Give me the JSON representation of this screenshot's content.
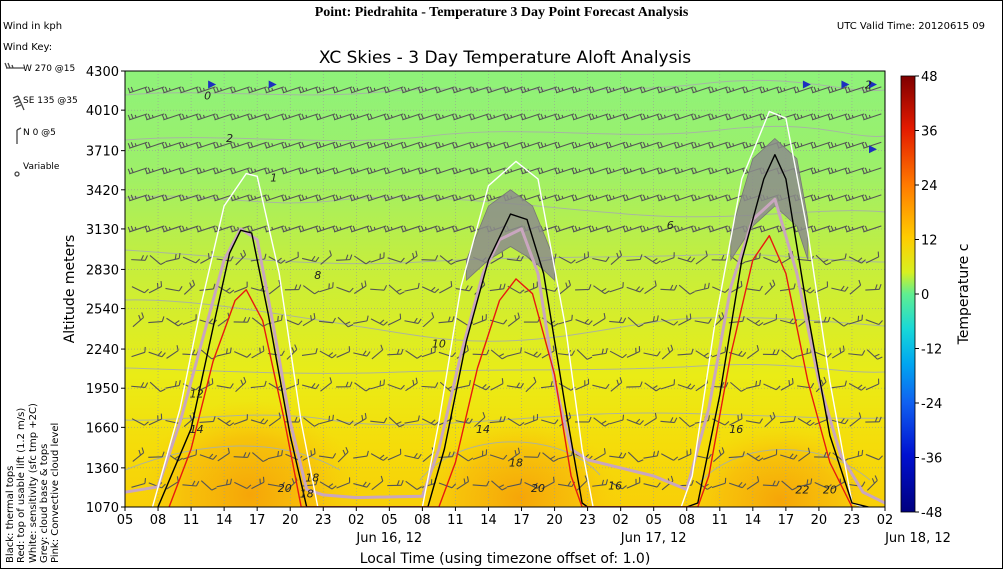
{
  "header": {
    "title": "Point: Piedrahita - Temperature 3 Day Point Forecast Analysis",
    "utc": "UTC Valid Time: 20120615 09"
  },
  "wind_units": "Wind in kph",
  "wind_key": {
    "label": "Wind Key:",
    "items": [
      "W 270 @15",
      "SE 135 @35",
      "N 0 @5",
      "Variable"
    ]
  },
  "legend_notes": [
    "Black: thermal tops",
    "Red: top of usable lift (1.2 m/s)",
    "White: sensitivity (sfc tmp +2C)",
    "Grey: cloud base & tops",
    "Pink: Convective cloud level"
  ],
  "colors": {
    "thermal_tops": "#000000",
    "usable_lift": "#e8190f",
    "sensitivity": "#ffffff",
    "cloud_band": "#8c8c8c",
    "convective_cloud": "#c9a6bf"
  },
  "chart_data": {
    "type": "heatmap",
    "title": "XC Skies - 3 Day Temperature Aloft Analysis",
    "xlabel": "Local Time (using timezone offset of: 1.0)",
    "ylabel": "Altitude meters",
    "x_hours": [
      5,
      8,
      11,
      14,
      17,
      20,
      23,
      26,
      29,
      32,
      35,
      38,
      41,
      44,
      47,
      50,
      53,
      56,
      59,
      62,
      65,
      68,
      71,
      74
    ],
    "x_tick_labels": [
      "05",
      "08",
      "11",
      "14",
      "17",
      "20",
      "23",
      "02",
      "05",
      "08",
      "11",
      "14",
      "17",
      "20",
      "23",
      "02",
      "05",
      "08",
      "11",
      "14",
      "17",
      "20",
      "23",
      "02"
    ],
    "date_labels": [
      {
        "hour": 26,
        "label": "Jun 16, 12"
      },
      {
        "hour": 50,
        "label": "Jun 17, 12"
      },
      {
        "hour": 74,
        "label": "Jun 18, 12"
      }
    ],
    "yticks": [
      1070,
      1360,
      1660,
      1950,
      2240,
      2540,
      2830,
      3130,
      3420,
      3710,
      4010,
      4300
    ],
    "ylim": [
      1070,
      4300
    ],
    "xlim": [
      5,
      74
    ],
    "colorbar": {
      "label": "Temperature c",
      "ticks": [
        48,
        36,
        24,
        12,
        0,
        -12,
        -24,
        -36,
        -48
      ],
      "range": [
        -48,
        48
      ]
    },
    "contour_labels": [
      {
        "text": "0",
        "x": 12.5,
        "y": 4090
      },
      {
        "text": "2",
        "x": 14.5,
        "y": 3775
      },
      {
        "text": "1",
        "x": 18.5,
        "y": 3480
      },
      {
        "text": "2",
        "x": 72.5,
        "y": 4170
      },
      {
        "text": "6",
        "x": 54.5,
        "y": 3130
      },
      {
        "text": "8",
        "x": 22.5,
        "y": 2760
      },
      {
        "text": "10",
        "x": 33.5,
        "y": 2250
      },
      {
        "text": "12",
        "x": 11.5,
        "y": 1880
      },
      {
        "text": "14",
        "x": 11.5,
        "y": 1620
      },
      {
        "text": "14",
        "x": 37.5,
        "y": 1620
      },
      {
        "text": "16",
        "x": 60.5,
        "y": 1620
      },
      {
        "text": "18",
        "x": 21.5,
        "y": 1140
      },
      {
        "text": "18",
        "x": 40.5,
        "y": 1370
      },
      {
        "text": "20",
        "x": 19.5,
        "y": 1180
      },
      {
        "text": "20",
        "x": 42.5,
        "y": 1180
      },
      {
        "text": "22",
        "x": 66.5,
        "y": 1170
      },
      {
        "text": "20",
        "x": 69,
        "y": 1170
      },
      {
        "text": "16",
        "x": 49.5,
        "y": 1200
      },
      {
        "text": "18",
        "x": 22,
        "y": 1260
      }
    ],
    "series": [
      {
        "name": "Black: thermal tops",
        "points": [
          [
            8,
            1070
          ],
          [
            11,
            1650
          ],
          [
            13,
            2400
          ],
          [
            14.5,
            2950
          ],
          [
            15.5,
            3120
          ],
          [
            16.5,
            3100
          ],
          [
            18,
            2500
          ],
          [
            20,
            1600
          ],
          [
            21.5,
            1070
          ],
          [
            32.5,
            1070
          ],
          [
            34,
            1500
          ],
          [
            36,
            2300
          ],
          [
            38,
            2900
          ],
          [
            40,
            3240
          ],
          [
            41.5,
            3200
          ],
          [
            43,
            2800
          ],
          [
            45,
            1800
          ],
          [
            46.5,
            1100
          ],
          [
            47,
            1070
          ],
          [
            56,
            1070
          ],
          [
            57,
            1100
          ],
          [
            59,
            1900
          ],
          [
            61,
            2900
          ],
          [
            63,
            3500
          ],
          [
            64,
            3680
          ],
          [
            65,
            3500
          ],
          [
            67,
            2500
          ],
          [
            69,
            1600
          ],
          [
            71,
            1100
          ],
          [
            72.5,
            1070
          ]
        ]
      },
      {
        "name": "Red: top of usable lift (1.2 m/s)",
        "points": [
          [
            9,
            1070
          ],
          [
            11,
            1500
          ],
          [
            13,
            2150
          ],
          [
            15,
            2600
          ],
          [
            16,
            2680
          ],
          [
            17.5,
            2450
          ],
          [
            19.5,
            1700
          ],
          [
            21,
            1070
          ],
          [
            33.5,
            1070
          ],
          [
            35,
            1400
          ],
          [
            37,
            2100
          ],
          [
            39,
            2600
          ],
          [
            40.5,
            2760
          ],
          [
            42,
            2650
          ],
          [
            44,
            2050
          ],
          [
            45.5,
            1300
          ],
          [
            46.5,
            1070
          ],
          [
            57,
            1070
          ],
          [
            58,
            1300
          ],
          [
            60,
            2200
          ],
          [
            62,
            2900
          ],
          [
            63.5,
            3080
          ],
          [
            65,
            2800
          ],
          [
            67,
            2000
          ],
          [
            69,
            1400
          ],
          [
            71,
            1070
          ]
        ]
      },
      {
        "name": "White: sensitivity (sfc tmp +2C)",
        "points": [
          [
            7.5,
            1070
          ],
          [
            10,
            1800
          ],
          [
            12,
            2600
          ],
          [
            14,
            3300
          ],
          [
            16,
            3540
          ],
          [
            17,
            3520
          ],
          [
            19,
            2800
          ],
          [
            21,
            1700
          ],
          [
            22.5,
            1070
          ],
          [
            32,
            1070
          ],
          [
            33.5,
            1700
          ],
          [
            35.5,
            2700
          ],
          [
            38,
            3450
          ],
          [
            40.5,
            3630
          ],
          [
            42.5,
            3500
          ],
          [
            45,
            2400
          ],
          [
            46.5,
            1500
          ],
          [
            47.5,
            1070
          ],
          [
            55.5,
            1070
          ],
          [
            56.5,
            1300
          ],
          [
            58.5,
            2400
          ],
          [
            61,
            3500
          ],
          [
            63.5,
            4000
          ],
          [
            65,
            3950
          ],
          [
            67,
            3100
          ],
          [
            69,
            2000
          ],
          [
            71,
            1100
          ],
          [
            72,
            1070
          ]
        ]
      },
      {
        "name": "Pink: Convective cloud level",
        "points": [
          [
            5,
            1180
          ],
          [
            8,
            1220
          ],
          [
            10,
            1700
          ],
          [
            12,
            2300
          ],
          [
            14,
            2900
          ],
          [
            15.5,
            3130
          ],
          [
            17,
            3050
          ],
          [
            18.5,
            2400
          ],
          [
            20,
            1700
          ],
          [
            21.5,
            1200
          ],
          [
            23,
            1160
          ],
          [
            26,
            1140
          ],
          [
            32,
            1150
          ],
          [
            33.5,
            1500
          ],
          [
            35.5,
            2200
          ],
          [
            37.5,
            2800
          ],
          [
            39,
            3050
          ],
          [
            41,
            3130
          ],
          [
            42.5,
            2800
          ],
          [
            44,
            2000
          ],
          [
            45.5,
            1500
          ],
          [
            47,
            1420
          ],
          [
            53,
            1300
          ],
          [
            56,
            1200
          ],
          [
            58,
            1800
          ],
          [
            60,
            2700
          ],
          [
            62,
            3200
          ],
          [
            64,
            3350
          ],
          [
            66,
            2800
          ],
          [
            68,
            2000
          ],
          [
            70,
            1450
          ],
          [
            72,
            1180
          ],
          [
            74,
            1100
          ]
        ]
      }
    ],
    "cloud_bands": [
      {
        "name": "Grey: cloud base & tops",
        "upper": [
          [
            36,
            2900
          ],
          [
            38,
            3300
          ],
          [
            40,
            3420
          ],
          [
            42,
            3300
          ],
          [
            44,
            2900
          ]
        ],
        "lower": [
          [
            36,
            2750
          ],
          [
            38,
            2900
          ],
          [
            40,
            3000
          ],
          [
            42,
            2900
          ],
          [
            44,
            2750
          ]
        ]
      },
      {
        "name": "Grey: cloud base & tops",
        "upper": [
          [
            60,
            3100
          ],
          [
            62,
            3650
          ],
          [
            64,
            3800
          ],
          [
            66,
            3650
          ],
          [
            67,
            3200
          ]
        ],
        "lower": [
          [
            60,
            2900
          ],
          [
            62,
            3150
          ],
          [
            64,
            3300
          ],
          [
            66,
            3150
          ],
          [
            67,
            2900
          ]
        ]
      }
    ]
  }
}
